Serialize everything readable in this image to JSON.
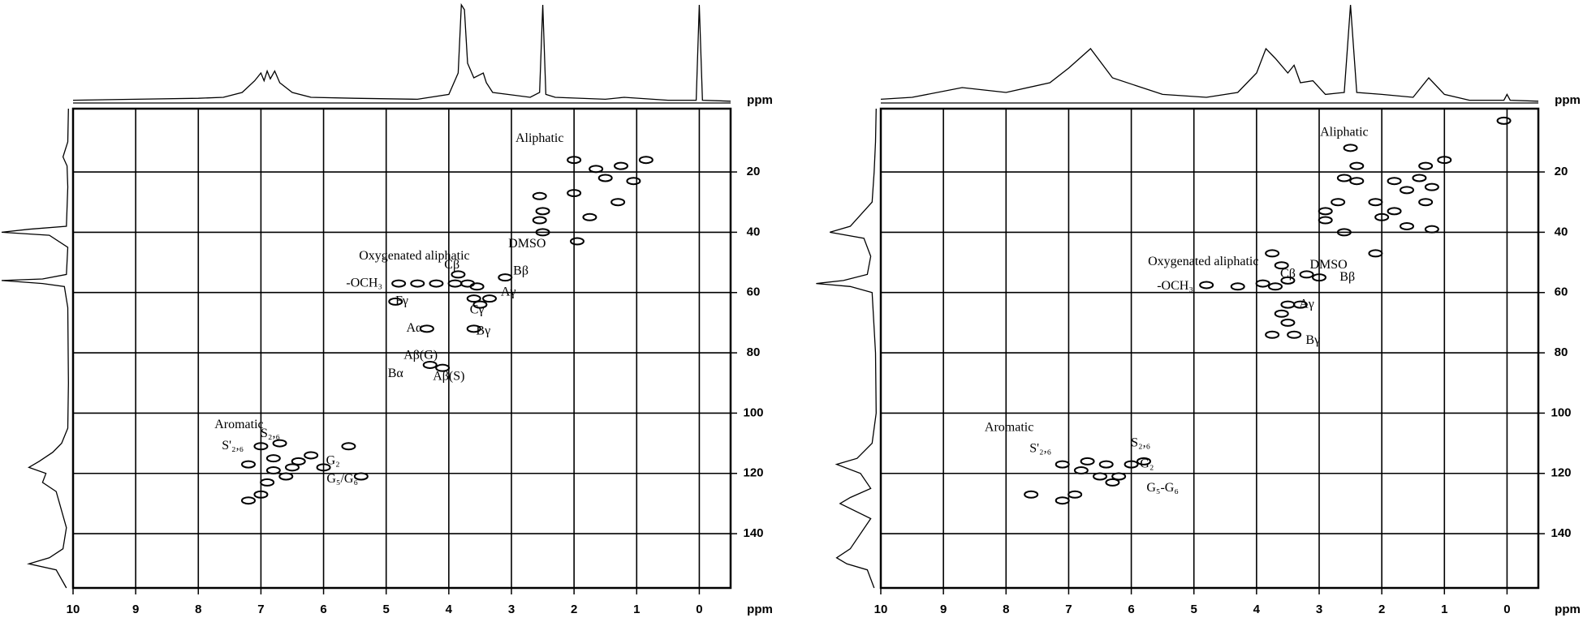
{
  "chart_data": [
    {
      "type": "scatter",
      "color": "#000000",
      "grid": true,
      "xlim": [
        10,
        -0.5
      ],
      "ylim": [
        158,
        -1
      ],
      "xticks": [
        10,
        9,
        8,
        7,
        6,
        5,
        4,
        3,
        2,
        1,
        0
      ],
      "yticks": [
        20,
        40,
        60,
        80,
        100,
        120,
        140
      ],
      "x_unit": "ppm",
      "projection_unit": "ppm",
      "x": [
        2.0,
        1.25,
        0.85,
        1.05,
        1.75,
        1.3,
        2.55,
        2.5,
        2.55,
        2.5,
        1.95,
        2.0,
        1.5,
        1.65,
        4.8,
        4.5,
        4.2,
        3.9,
        3.7,
        3.55,
        3.85,
        3.6,
        3.5,
        3.35,
        4.85,
        4.35,
        3.6,
        3.1,
        4.3,
        4.1,
        7.0,
        6.7,
        6.8,
        7.2,
        6.5,
        6.8,
        6.6,
        6.9,
        7.0,
        7.2,
        6.2,
        5.6,
        5.4,
        6.0,
        6.4
      ],
      "values": [
        16,
        18,
        16,
        23,
        35,
        30,
        36,
        33,
        28,
        40,
        43,
        27,
        22,
        19,
        57,
        57,
        57,
        57,
        57,
        58,
        54,
        62,
        64,
        62,
        63,
        72,
        72,
        55,
        84,
        85,
        111,
        110,
        115,
        117,
        118,
        119,
        121,
        123,
        127,
        129,
        114,
        111,
        121,
        118,
        116
      ],
      "annotations": [
        {
          "text": "Aliphatic",
          "x": 2.55,
          "y": 9
        },
        {
          "text": "Oxygenated aliphatic",
          "x": 4.55,
          "y": 48
        },
        {
          "text": "DMSO",
          "x": 2.75,
          "y": 44
        },
        {
          "text": "-OCH₃",
          "x": 5.35,
          "y": 57
        },
        {
          "text": "Cβ",
          "x": 3.95,
          "y": 51
        },
        {
          "text": "Bβ",
          "x": 2.85,
          "y": 53
        },
        {
          "text": "Aγ",
          "x": 3.05,
          "y": 60
        },
        {
          "text": "Fγ",
          "x": 4.75,
          "y": 63
        },
        {
          "text": "Cγ",
          "x": 3.55,
          "y": 66
        },
        {
          "text": "Aα",
          "x": 4.55,
          "y": 72
        },
        {
          "text": "Bγ",
          "x": 3.45,
          "y": 73
        },
        {
          "text": "Aβ(G)",
          "x": 4.45,
          "y": 81
        },
        {
          "text": "Bα",
          "x": 4.85,
          "y": 87
        },
        {
          "text": "Aβ(S)",
          "x": 4.0,
          "y": 88
        },
        {
          "text": "Aromatic",
          "x": 7.35,
          "y": 104
        },
        {
          "text": "S'₂,₆",
          "x": 7.45,
          "y": 111
        },
        {
          "text": "S₂,₆",
          "x": 6.85,
          "y": 107
        },
        {
          "text": "G₂",
          "x": 5.85,
          "y": 116
        },
        {
          "text": "G₅/G₆",
          "x": 5.7,
          "y": 122
        }
      ],
      "x_projection": {
        "x": [
          10,
          9,
          8,
          7.6,
          7.3,
          7.1,
          7.0,
          6.95,
          6.9,
          6.85,
          6.78,
          6.7,
          6.5,
          6.2,
          5.5,
          4.5,
          4.0,
          3.85,
          3.8,
          3.75,
          3.7,
          3.6,
          3.45,
          3.4,
          3.3,
          2.7,
          2.55,
          2.5,
          2.45,
          2.3,
          1.5,
          1.2,
          0.5,
          0.05,
          0,
          -0.05,
          -0.5
        ],
        "values": [
          2,
          3,
          4,
          5,
          10,
          22,
          30,
          22,
          32,
          24,
          32,
          20,
          10,
          5,
          4,
          3,
          8,
          30,
          100,
          95,
          40,
          25,
          30,
          20,
          10,
          5,
          10,
          100,
          8,
          5,
          3,
          5,
          2,
          2,
          100,
          2,
          1
        ]
      },
      "y_projection": {
        "y": [
          -1,
          10,
          15,
          18,
          25,
          38,
          39,
          40,
          41,
          45,
          54,
          55.5,
          56,
          57,
          58,
          65,
          90,
          105,
          110,
          113,
          116,
          118,
          120,
          123,
          126,
          130,
          138,
          145,
          148,
          150,
          152,
          158
        ],
        "values": [
          2,
          3,
          10,
          4,
          3,
          5,
          60,
          100,
          30,
          3,
          5,
          40,
          100,
          40,
          8,
          3,
          2,
          3,
          12,
          25,
          45,
          60,
          35,
          40,
          20,
          15,
          5,
          10,
          30,
          60,
          20,
          5
        ]
      }
    },
    {
      "type": "scatter",
      "color": "#000000",
      "grid": true,
      "xlim": [
        10,
        -0.5
      ],
      "ylim": [
        158,
        -1
      ],
      "xticks": [
        10,
        9,
        8,
        7,
        6,
        5,
        4,
        3,
        2,
        1,
        0
      ],
      "yticks": [
        20,
        40,
        60,
        80,
        100,
        120,
        140
      ],
      "x_unit": "ppm",
      "projection_unit": "ppm",
      "x": [
        2.5,
        2.4,
        2.4,
        2.6,
        1.8,
        1.3,
        1.2,
        1.3,
        1.0,
        2.1,
        2.0,
        1.8,
        2.9,
        2.9,
        2.6,
        2.7,
        1.6,
        1.2,
        2.1,
        0.05,
        1.6,
        1.4,
        3.75,
        3.6,
        3.2,
        3.0,
        3.9,
        3.7,
        4.3,
        4.8,
        3.5,
        3.5,
        3.3,
        3.6,
        3.5,
        3.4,
        3.75,
        7.1,
        6.7,
        6.4,
        6.8,
        6.5,
        6.3,
        6.9,
        7.1,
        7.6,
        6.0,
        5.8,
        6.2
      ],
      "values": [
        12,
        18,
        23,
        22,
        23,
        18,
        25,
        30,
        16,
        30,
        35,
        33,
        33,
        36,
        40,
        30,
        38,
        39,
        47,
        3,
        26,
        22,
        47,
        51,
        54,
        55,
        57,
        58,
        58,
        57.5,
        56,
        64,
        64,
        67,
        70,
        74,
        74,
        117,
        116,
        117,
        119,
        121,
        123,
        127,
        129,
        127,
        117,
        116,
        121
      ],
      "annotations": [
        {
          "text": "Aliphatic",
          "x": 2.6,
          "y": 7
        },
        {
          "text": "Oxygenated aliphatic",
          "x": 4.85,
          "y": 50
        },
        {
          "text": "DMSO",
          "x": 2.85,
          "y": 51
        },
        {
          "text": "-OCH₃",
          "x": 5.3,
          "y": 58
        },
        {
          "text": "Cβ",
          "x": 3.5,
          "y": 54
        },
        {
          "text": "Bβ",
          "x": 2.55,
          "y": 55
        },
        {
          "text": "Aγ",
          "x": 3.2,
          "y": 64
        },
        {
          "text": "Bγ",
          "x": 3.1,
          "y": 76
        },
        {
          "text": "Aromatic",
          "x": 7.95,
          "y": 105
        },
        {
          "text": "S'₂,₆",
          "x": 7.45,
          "y": 112
        },
        {
          "text": "S₂,₆",
          "x": 5.85,
          "y": 110
        },
        {
          "text": "G₂",
          "x": 5.75,
          "y": 117
        },
        {
          "text": "G₅-G₆",
          "x": 5.5,
          "y": 125
        }
      ],
      "x_projection": {
        "x": [
          10,
          9.5,
          8.7,
          8,
          7.3,
          7,
          6.65,
          6.3,
          5.5,
          4.8,
          4.3,
          4.0,
          3.85,
          3.7,
          3.5,
          3.4,
          3.3,
          3.1,
          2.9,
          2.6,
          2.5,
          2.4,
          2.0,
          1.5,
          1.25,
          1.0,
          0.6,
          0.05,
          0,
          -0.05,
          -0.5
        ],
        "values": [
          3,
          5,
          15,
          10,
          20,
          35,
          55,
          25,
          8,
          5,
          10,
          30,
          55,
          45,
          30,
          38,
          20,
          22,
          8,
          10,
          100,
          10,
          8,
          5,
          25,
          8,
          2,
          2,
          8,
          2,
          1
        ]
      },
      "y_projection": {
        "y": [
          -1,
          10,
          20,
          30,
          38,
          40,
          42,
          48,
          54,
          56,
          57,
          58,
          60,
          80,
          100,
          110,
          115,
          117,
          120,
          125,
          128,
          130,
          135,
          145,
          148,
          150,
          152,
          158
        ],
        "values": [
          2,
          3,
          5,
          8,
          40,
          70,
          20,
          10,
          15,
          50,
          90,
          40,
          8,
          3,
          2,
          8,
          30,
          60,
          25,
          10,
          40,
          55,
          10,
          40,
          60,
          45,
          15,
          5
        ]
      }
    }
  ]
}
